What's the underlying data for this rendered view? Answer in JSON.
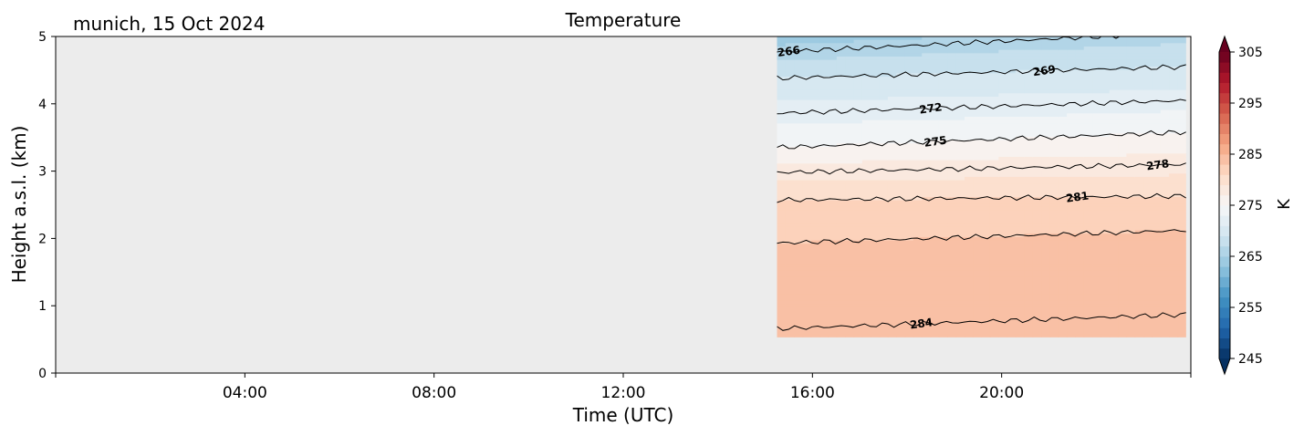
{
  "chart_data": {
    "type": "heatmap",
    "title": "Temperature",
    "subtitle": "munich, 15 Oct 2024",
    "xlabel": "Time (UTC)",
    "ylabel": "Height a.s.l. (km)",
    "xlim": [
      0,
      24
    ],
    "ylim": [
      0,
      5
    ],
    "xticks": [
      4,
      8,
      12,
      16,
      20
    ],
    "xtick_labels": [
      "04:00",
      "08:00",
      "12:00",
      "16:00",
      "20:00"
    ],
    "yticks": [
      0,
      1,
      2,
      3,
      4,
      5
    ],
    "ytick_labels": [
      "0",
      "1",
      "2",
      "3",
      "4",
      "5"
    ],
    "missing_data_color": "#ececec",
    "data_extent": {
      "x": [
        15.25,
        23.9
      ],
      "y": [
        0.53,
        5.0
      ]
    },
    "colormap": "RdBu_r",
    "colorbar": {
      "label": "K",
      "range": [
        245,
        305
      ],
      "ticks": [
        245,
        255,
        265,
        275,
        285,
        295,
        305
      ],
      "tick_labels": [
        "245",
        "255",
        "265",
        "275",
        "285",
        "295",
        "305"
      ],
      "extend": "both"
    },
    "contours": [
      {
        "level": 266,
        "label": "266",
        "y_start": 4.77,
        "y_end": 5.06,
        "label_x": 15.5
      },
      {
        "level": 269,
        "label": "269",
        "y_start": 4.38,
        "y_end": 4.55,
        "label_x": 20.9
      },
      {
        "level": 272,
        "label": "272",
        "y_start": 3.86,
        "y_end": 4.05,
        "label_x": 18.5
      },
      {
        "level": 275,
        "label": "275",
        "y_start": 3.35,
        "y_end": 3.58,
        "label_x": 18.6
      },
      {
        "level": 278,
        "label": "278",
        "y_start": 2.98,
        "y_end": 3.1,
        "label_x": 23.3
      },
      {
        "level": 281,
        "label": "281",
        "y_start": 2.57,
        "y_end": 2.63,
        "label_x": 21.6
      },
      {
        "level": 283,
        "label": "",
        "y_start": 1.93,
        "y_end": 2.12,
        "label_x": null
      },
      {
        "level": 284,
        "label": "284",
        "y_start": 0.66,
        "y_end": 0.87,
        "label_x": 18.3
      }
    ]
  }
}
